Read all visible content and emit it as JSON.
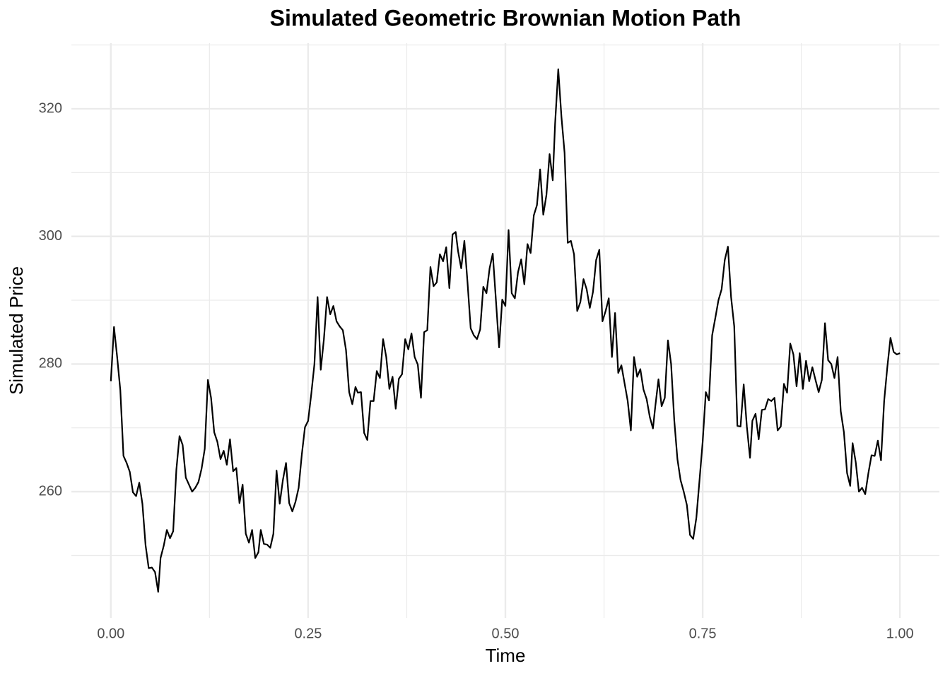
{
  "chart_data": {
    "type": "line",
    "title": "Simulated Geometric Brownian Motion Path",
    "x_label": "Time",
    "y_label": "Simulated Price",
    "color": "#000000",
    "grid": true,
    "minor_grid": true,
    "xlim": [
      -0.05,
      1.05
    ],
    "ylim": [
      240.2,
      330.3
    ],
    "xticks": [
      {
        "value": 0,
        "label": "0.00"
      },
      0.25,
      {
        "value": 0.5,
        "label": "0.50"
      },
      0.75,
      {
        "value": 1,
        "label": "1.00"
      }
    ],
    "yticks": [
      260,
      280,
      300,
      320
    ],
    "x": [
      0,
      0.004,
      0.008,
      0.012,
      0.016,
      0.02,
      0.024,
      0.028,
      0.032,
      0.036,
      0.04,
      0.044,
      0.048,
      0.052,
      0.056,
      0.06,
      0.063,
      0.067,
      0.071,
      0.075,
      0.079,
      0.083,
      0.087,
      0.091,
      0.095,
      0.099,
      0.103,
      0.107,
      0.111,
      0.115,
      0.119,
      0.123,
      0.127,
      0.131,
      0.135,
      0.139,
      0.143,
      0.147,
      0.151,
      0.155,
      0.159,
      0.163,
      0.167,
      0.171,
      0.175,
      0.179,
      0.183,
      0.187,
      0.19,
      0.194,
      0.198,
      0.202,
      0.206,
      0.21,
      0.214,
      0.218,
      0.222,
      0.226,
      0.23,
      0.234,
      0.238,
      0.242,
      0.246,
      0.25,
      0.254,
      0.258,
      0.262,
      0.266,
      0.27,
      0.274,
      0.278,
      0.282,
      0.286,
      0.29,
      0.294,
      0.298,
      0.302,
      0.306,
      0.31,
      0.313,
      0.317,
      0.321,
      0.325,
      0.329,
      0.333,
      0.337,
      0.341,
      0.345,
      0.349,
      0.353,
      0.357,
      0.361,
      0.365,
      0.369,
      0.373,
      0.377,
      0.381,
      0.385,
      0.389,
      0.393,
      0.397,
      0.401,
      0.405,
      0.409,
      0.413,
      0.417,
      0.421,
      0.425,
      0.429,
      0.433,
      0.437,
      0.44,
      0.444,
      0.448,
      0.452,
      0.456,
      0.46,
      0.464,
      0.468,
      0.472,
      0.476,
      0.48,
      0.484,
      0.488,
      0.492,
      0.496,
      0.5,
      0.504,
      0.508,
      0.512,
      0.516,
      0.52,
      0.524,
      0.528,
      0.532,
      0.536,
      0.54,
      0.544,
      0.548,
      0.552,
      0.556,
      0.56,
      0.563,
      0.567,
      0.571,
      0.575,
      0.579,
      0.583,
      0.587,
      0.591,
      0.595,
      0.599,
      0.603,
      0.607,
      0.611,
      0.615,
      0.619,
      0.623,
      0.627,
      0.631,
      0.635,
      0.639,
      0.643,
      0.647,
      0.651,
      0.655,
      0.659,
      0.663,
      0.667,
      0.671,
      0.675,
      0.679,
      0.683,
      0.687,
      0.69,
      0.694,
      0.698,
      0.702,
      0.706,
      0.71,
      0.714,
      0.718,
      0.722,
      0.726,
      0.73,
      0.734,
      0.738,
      0.742,
      0.746,
      0.75,
      0.754,
      0.758,
      0.762,
      0.766,
      0.77,
      0.774,
      0.778,
      0.782,
      0.786,
      0.79,
      0.794,
      0.798,
      0.802,
      0.806,
      0.81,
      0.813,
      0.817,
      0.821,
      0.825,
      0.829,
      0.833,
      0.837,
      0.841,
      0.845,
      0.849,
      0.853,
      0.857,
      0.861,
      0.865,
      0.869,
      0.873,
      0.877,
      0.881,
      0.885,
      0.889,
      0.893,
      0.897,
      0.901,
      0.905,
      0.909,
      0.913,
      0.917,
      0.921,
      0.925,
      0.929,
      0.933,
      0.937,
      0.94,
      0.944,
      0.948,
      0.952,
      0.956,
      0.96,
      0.964,
      0.968,
      0.972,
      0.976,
      0.98,
      0.984,
      0.988,
      0.992,
      0.996,
      1
    ],
    "values": [
      277.3,
      285.8,
      281.1,
      275.9,
      265.6,
      264.5,
      263.1,
      259.9,
      259.3,
      261.4,
      258.1,
      251.6,
      248.0,
      248.1,
      247.4,
      244.3,
      249.6,
      251.5,
      254.0,
      252.7,
      253.8,
      263.4,
      268.7,
      267.3,
      262.2,
      261.1,
      260.0,
      260.6,
      261.5,
      263.6,
      266.7,
      277.5,
      274.7,
      269.3,
      267.8,
      265.1,
      266.4,
      264.2,
      268.2,
      263.2,
      263.7,
      258.2,
      261.1,
      253.4,
      252.0,
      254.0,
      249.6,
      250.5,
      254.0,
      251.8,
      251.7,
      251.2,
      253.4,
      263.3,
      258.1,
      261.8,
      264.5,
      258.2,
      256.9,
      258.4,
      260.6,
      265.8,
      270.1,
      271.1,
      275.3,
      280.0,
      290.5,
      279.1,
      283.9,
      290.5,
      287.8,
      289.1,
      286.7,
      285.9,
      285.3,
      282.2,
      275.6,
      273.7,
      276.4,
      275.5,
      275.6,
      269.2,
      268.1,
      274.2,
      274.2,
      278.9,
      277.8,
      283.9,
      281.1,
      276.1,
      278.0,
      273.0,
      277.7,
      278.4,
      283.9,
      282.3,
      284.8,
      281.1,
      279.9,
      274.7,
      285.0,
      285.3,
      295.2,
      292.2,
      292.8,
      297.2,
      296.1,
      298.3,
      291.9,
      300.3,
      300.7,
      297.7,
      295.0,
      299.3,
      292.8,
      285.6,
      284.5,
      283.9,
      285.4,
      292.1,
      291.1,
      295.0,
      297.3,
      290.0,
      282.6,
      290.1,
      289.1,
      301.0,
      291.1,
      290.3,
      294.4,
      296.4,
      292.5,
      298.8,
      297.4,
      303.3,
      304.9,
      310.5,
      303.4,
      306.5,
      312.9,
      308.8,
      317.7,
      326.2,
      318.8,
      313.1,
      299.0,
      299.3,
      297.2,
      288.3,
      289.7,
      293.3,
      291.7,
      288.8,
      291.3,
      296.3,
      297.9,
      286.7,
      288.3,
      290.3,
      281.1,
      288.0,
      278.6,
      279.8,
      277.0,
      274.2,
      269.6,
      281.1,
      278.0,
      279.2,
      276.0,
      274.5,
      271.7,
      269.9,
      273.4,
      277.6,
      273.4,
      274.7,
      283.7,
      280.0,
      271.2,
      265.1,
      261.8,
      260.0,
      257.9,
      253.2,
      252.6,
      255.9,
      261.8,
      267.8,
      275.6,
      274.3,
      284.5,
      287.2,
      290.0,
      291.7,
      296.3,
      298.4,
      290.5,
      285.9,
      270.3,
      270.2,
      276.8,
      270.2,
      265.3,
      271.1,
      272.2,
      268.2,
      272.8,
      272.9,
      274.5,
      274.2,
      274.7,
      269.6,
      270.2,
      276.9,
      275.5,
      283.2,
      281.5,
      276.5,
      281.7,
      276.1,
      280.5,
      277.3,
      279.5,
      277.5,
      275.6,
      277.5,
      286.4,
      280.6,
      280.0,
      277.8,
      281.1,
      272.6,
      269.3,
      262.9,
      260.9,
      267.6,
      264.6,
      260.0,
      260.6,
      259.6,
      262.9,
      265.7,
      265.6,
      268.0,
      264.9,
      274.2,
      279.5,
      284.1,
      281.9,
      281.5,
      281.7
    ]
  }
}
